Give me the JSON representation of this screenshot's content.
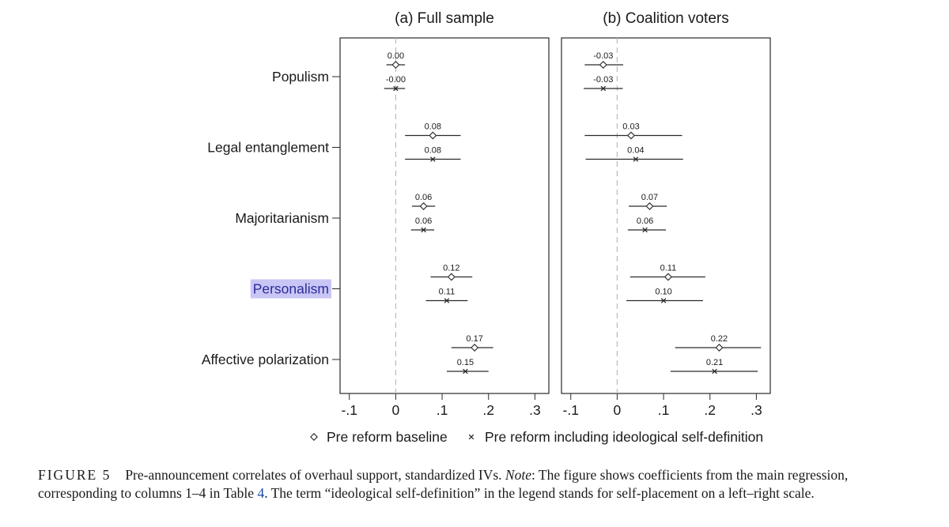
{
  "chart_data": {
    "type": "coefficient-plot",
    "panels": [
      {
        "title": "(a) Full sample",
        "xlim": [
          -0.12,
          0.33
        ],
        "ticks": [
          -0.1,
          0,
          0.1,
          0.2,
          0.3
        ],
        "tick_labels": [
          "-.1",
          "0",
          ".1",
          ".2",
          ".3"
        ],
        "rows": [
          {
            "label": "Populism",
            "estimates": [
              {
                "series": "baseline",
                "value": 0.0,
                "ci": [
                  -0.02,
                  0.02
                ],
                "label": "0.00"
              },
              {
                "series": "ideological",
                "value": -0.0,
                "ci": [
                  -0.025,
                  0.02
                ],
                "label": "-0.00"
              }
            ]
          },
          {
            "label": "Legal entanglement",
            "estimates": [
              {
                "series": "baseline",
                "value": 0.08,
                "ci": [
                  0.02,
                  0.14
                ],
                "label": "0.08"
              },
              {
                "series": "ideological",
                "value": 0.08,
                "ci": [
                  0.02,
                  0.14
                ],
                "label": "0.08"
              }
            ]
          },
          {
            "label": "Majoritarianism",
            "estimates": [
              {
                "series": "baseline",
                "value": 0.06,
                "ci": [
                  0.035,
                  0.085
                ],
                "label": "0.06"
              },
              {
                "series": "ideological",
                "value": 0.06,
                "ci": [
                  0.033,
                  0.083
                ],
                "label": "0.06"
              }
            ]
          },
          {
            "label": "Personalism",
            "estimates": [
              {
                "series": "baseline",
                "value": 0.12,
                "ci": [
                  0.075,
                  0.165
                ],
                "label": "0.12"
              },
              {
                "series": "ideological",
                "value": 0.11,
                "ci": [
                  0.065,
                  0.155
                ],
                "label": "0.11"
              }
            ]
          },
          {
            "label": "Affective polarization",
            "estimates": [
              {
                "series": "baseline",
                "value": 0.17,
                "ci": [
                  0.12,
                  0.21
                ],
                "label": "0.17"
              },
              {
                "series": "ideological",
                "value": 0.15,
                "ci": [
                  0.11,
                  0.2
                ],
                "label": "0.15"
              }
            ]
          }
        ]
      },
      {
        "title": "(b) Coalition voters",
        "xlim": [
          -0.12,
          0.33
        ],
        "ticks": [
          -0.1,
          0,
          0.1,
          0.2,
          0.3
        ],
        "tick_labels": [
          "-.1",
          "0",
          ".1",
          ".2",
          ".3"
        ],
        "rows": [
          {
            "label": "Populism",
            "estimates": [
              {
                "series": "baseline",
                "value": -0.03,
                "ci": [
                  -0.07,
                  0.013
                ],
                "label": "-0.03"
              },
              {
                "series": "ideological",
                "value": -0.03,
                "ci": [
                  -0.072,
                  0.012
                ],
                "label": "-0.03"
              }
            ]
          },
          {
            "label": "Legal entanglement",
            "estimates": [
              {
                "series": "baseline",
                "value": 0.03,
                "ci": [
                  -0.07,
                  0.14
                ],
                "label": "0.03"
              },
              {
                "series": "ideological",
                "value": 0.04,
                "ci": [
                  -0.068,
                  0.142
                ],
                "label": "0.04"
              }
            ]
          },
          {
            "label": "Majoritarianism",
            "estimates": [
              {
                "series": "baseline",
                "value": 0.07,
                "ci": [
                  0.025,
                  0.107
                ],
                "label": "0.07"
              },
              {
                "series": "ideological",
                "value": 0.06,
                "ci": [
                  0.023,
                  0.105
                ],
                "label": "0.06"
              }
            ]
          },
          {
            "label": "Personalism",
            "estimates": [
              {
                "series": "baseline",
                "value": 0.11,
                "ci": [
                  0.028,
                  0.19
                ],
                "label": "0.11"
              },
              {
                "series": "ideological",
                "value": 0.1,
                "ci": [
                  0.02,
                  0.185
                ],
                "label": "0.10"
              }
            ]
          },
          {
            "label": "Affective polarization",
            "estimates": [
              {
                "series": "baseline",
                "value": 0.22,
                "ci": [
                  0.125,
                  0.31
                ],
                "label": "0.22"
              },
              {
                "series": "ideological",
                "value": 0.21,
                "ci": [
                  0.115,
                  0.303
                ],
                "label": "0.21"
              }
            ]
          }
        ]
      }
    ],
    "legend": {
      "placement": "bottom",
      "entries": [
        {
          "series": "baseline",
          "symbol": "diamond",
          "label": "Pre reform baseline"
        },
        {
          "series": "ideological",
          "symbol": "x",
          "label": "Pre reform including ideological self-definition"
        }
      ]
    },
    "reference_line": 0,
    "highlighted_row": "Personalism",
    "colors": {
      "line": "#2a2a2a",
      "reference": "#bbbbbb",
      "highlight": "#c9c6f5",
      "highlight_text": "#2c2c9a"
    }
  },
  "caption": {
    "figure_label": "FIGURE 5",
    "text_1": "Pre-announcement correlates of overhaul support, standardized IVs. ",
    "note_label": "Note",
    "text_2": ": The figure shows coefficients from the main regression, corresponding to columns 1–4 in Table ",
    "table_ref": "4",
    "text_3": ". The term “ideological self-definition” in the legend stands for self-placement on a left–right scale."
  }
}
